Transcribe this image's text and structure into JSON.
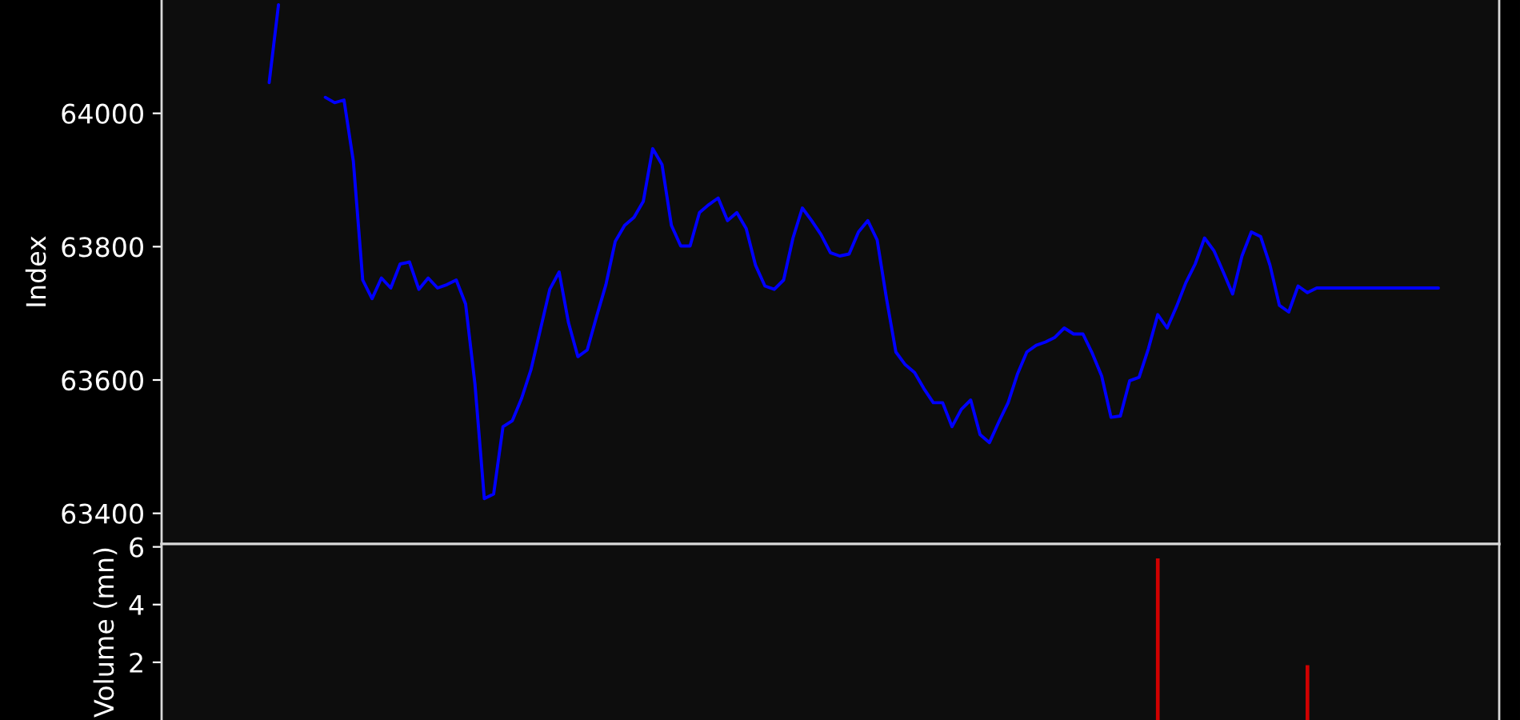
{
  "chart_data": [
    {
      "type": "line",
      "ylabel": "Index",
      "tick_labels": "y",
      "ylim": [
        63354,
        64170
      ],
      "yticks": [
        63400,
        63600,
        63800,
        64000
      ],
      "categories": [
        null,
        null,
        null,
        null,
        null,
        null,
        null,
        null,
        null,
        null,
        null,
        null,
        null,
        null,
        null,
        null,
        null,
        null,
        null,
        null,
        null,
        null,
        null,
        null,
        null,
        null,
        null,
        null,
        null,
        null,
        null,
        null,
        null,
        null,
        null,
        null,
        null,
        null,
        null,
        null,
        null,
        null,
        null,
        null,
        null,
        null,
        null,
        null,
        null,
        null,
        null,
        null,
        null,
        null,
        null,
        null,
        null,
        null,
        null,
        null,
        null,
        null,
        null,
        null,
        null,
        null,
        null,
        null,
        null,
        null,
        null,
        null,
        null,
        null,
        null,
        null,
        null,
        null,
        null,
        null,
        null,
        null,
        null,
        null,
        null,
        null,
        null,
        null,
        null,
        null,
        null,
        null,
        null,
        null,
        null,
        null,
        null,
        null,
        null,
        null,
        null,
        null,
        null,
        null,
        null,
        null,
        null,
        null,
        null,
        null,
        null,
        null,
        null,
        null,
        null,
        null,
        null,
        null,
        null,
        null,
        null,
        null,
        null,
        null,
        null,
        null,
        null,
        null,
        null,
        null,
        null
      ],
      "series": [
        {
          "color": "#0000ff",
          "values": [
            null,
            null,
            null,
            null,
            null,
            64046,
            64163,
            null,
            null,
            null,
            null,
            null,
            null,
            null,
            null,
            null,
            null,
            null,
            null,
            null,
            null,
            null,
            null,
            null,
            null,
            null,
            null,
            null,
            null,
            null,
            null,
            null,
            null,
            null,
            null,
            null,
            null,
            null,
            null,
            null,
            null,
            null,
            null,
            null,
            null,
            null,
            null,
            null,
            null,
            null,
            null,
            null,
            null,
            null,
            null,
            null,
            null,
            null,
            null,
            null,
            null,
            null,
            null,
            null,
            null,
            null,
            null,
            null,
            null,
            null,
            null,
            null,
            null,
            null,
            null,
            null,
            null,
            null,
            null,
            null,
            null,
            null,
            null,
            null,
            null,
            null,
            null,
            null,
            null,
            null,
            null,
            null,
            null,
            null,
            null,
            null,
            null,
            null,
            null,
            null,
            null,
            null,
            null,
            null,
            null,
            null,
            null,
            null,
            null,
            null,
            null,
            null,
            null,
            null,
            null,
            null,
            null,
            null,
            null,
            null,
            null,
            null,
            null,
            null,
            null,
            null,
            null,
            null,
            null,
            null,
            null
          ]
        },
        {
          "color": "#0000ff",
          "values": [
            null,
            null,
            null,
            null,
            null,
            null,
            null,
            null,
            null,
            null,
            null,
            64024,
            64016,
            64020,
            63928,
            63750,
            63722,
            63753,
            63738,
            63774,
            63777,
            63736,
            63753,
            63738,
            63743,
            63750,
            63714,
            63594,
            63422,
            63429,
            63530,
            63539,
            63573,
            63616,
            63676,
            63736,
            63762,
            63686,
            63635,
            63645,
            63695,
            63743,
            63808,
            63832,
            63844,
            63868,
            63947,
            63923,
            63832,
            63801,
            63801,
            63851,
            63863,
            63873,
            63839,
            63851,
            63827,
            63772,
            63741,
            63736,
            63750,
            63813,
            63858,
            63839,
            63818,
            63791,
            63786,
            63789,
            63822,
            63839,
            63810,
            63722,
            63642,
            63623,
            63611,
            63587,
            63566,
            63566,
            63530,
            63556,
            63570,
            63518,
            63506,
            63537,
            63566,
            63609,
            63642,
            63652,
            63657,
            63664,
            63678,
            63669,
            63669,
            63640,
            63606,
            63544,
            63546,
            63599,
            63604,
            63647,
            63698,
            63678,
            63710,
            63746,
            63774,
            63813,
            63794,
            63762,
            63729,
            63786,
            63822,
            63815,
            63772,
            63712,
            63702,
            63741,
            63731,
            63738,
            63738,
            63738,
            63738,
            63738,
            63738,
            63738,
            63738,
            63738,
            63738,
            63738,
            63738,
            63738,
            63738
          ]
        }
      ]
    },
    {
      "type": "bar",
      "ylabel": "Volume (mn)",
      "color": "#d00000",
      "tick_labels": "y",
      "ylim": [
        0,
        6.1
      ],
      "yticks": [
        2,
        4,
        6
      ],
      "categories": [
        null,
        null,
        null,
        null,
        null,
        null,
        null,
        null,
        null,
        null,
        null,
        null,
        null,
        null,
        null,
        null,
        null,
        null,
        null,
        null,
        null,
        null,
        null,
        null,
        null,
        null,
        null,
        null,
        null,
        null,
        null,
        null,
        null,
        null,
        null,
        null,
        null,
        null,
        null,
        null,
        null,
        null,
        null,
        null,
        null,
        null,
        null,
        null,
        null,
        null,
        null,
        null,
        null,
        null,
        null,
        null,
        null,
        null,
        null,
        null,
        null,
        null,
        null,
        null,
        null,
        null,
        null,
        null,
        null,
        null,
        null,
        null,
        null,
        null,
        null,
        null,
        null,
        null,
        null,
        null,
        null,
        null,
        null,
        null,
        null,
        null,
        null,
        null,
        null,
        null,
        null,
        null,
        null,
        null,
        null,
        null,
        null,
        null,
        null,
        null,
        null,
        null,
        null,
        null,
        null,
        null,
        null,
        null,
        null,
        null,
        null,
        null,
        null,
        null,
        null,
        null,
        null,
        null,
        null,
        null,
        null,
        null,
        null,
        null,
        null,
        null,
        null,
        null,
        null,
        null,
        null
      ],
      "values": [
        null,
        null,
        null,
        null,
        null,
        null,
        null,
        null,
        null,
        null,
        null,
        null,
        null,
        null,
        null,
        null,
        null,
        null,
        null,
        null,
        null,
        null,
        null,
        null,
        null,
        null,
        null,
        null,
        null,
        null,
        null,
        null,
        null,
        null,
        null,
        null,
        null,
        null,
        null,
        null,
        null,
        null,
        null,
        null,
        null,
        null,
        null,
        null,
        null,
        null,
        null,
        null,
        null,
        null,
        null,
        null,
        null,
        null,
        null,
        null,
        null,
        null,
        null,
        null,
        null,
        null,
        null,
        null,
        null,
        null,
        null,
        null,
        null,
        null,
        null,
        null,
        null,
        null,
        null,
        null,
        null,
        null,
        null,
        null,
        null,
        null,
        null,
        null,
        null,
        null,
        null,
        null,
        null,
        null,
        null,
        null,
        null,
        null,
        null,
        null,
        5.6,
        null,
        null,
        null,
        null,
        null,
        null,
        null,
        null,
        null,
        null,
        null,
        null,
        null,
        null,
        null,
        1.9,
        null,
        null,
        null,
        null,
        null,
        null,
        null,
        null,
        null,
        null,
        null,
        null,
        null,
        null
      ]
    }
  ]
}
